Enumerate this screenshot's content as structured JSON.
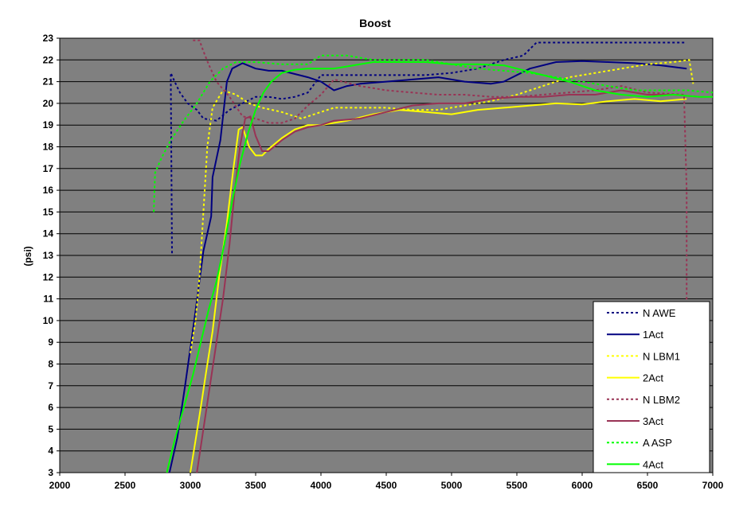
{
  "chart_data": {
    "type": "line",
    "title": "Boost",
    "xlabel": "",
    "ylabel": "(psi)",
    "xlim": [
      2000,
      7000
    ],
    "ylim": [
      3,
      23
    ],
    "x_ticks": [
      2000,
      2500,
      3000,
      3500,
      4000,
      4500,
      5000,
      5500,
      6000,
      6500,
      7000
    ],
    "y_ticks": [
      3,
      4,
      5,
      6,
      7,
      8,
      9,
      10,
      11,
      12,
      13,
      14,
      15,
      16,
      17,
      18,
      19,
      20,
      21,
      22,
      23
    ],
    "grid": "horizontal",
    "legend_position": "bottom-right",
    "background": "#808080",
    "series": [
      {
        "name": "N AWE",
        "color": "#000080",
        "dashed": true,
        "points": [
          [
            2860,
            13.1
          ],
          [
            2850,
            21.4
          ],
          [
            2880,
            21.0
          ],
          [
            2920,
            20.5
          ],
          [
            2980,
            20.0
          ],
          [
            3050,
            19.7
          ],
          [
            3100,
            19.3
          ],
          [
            3200,
            19.2
          ],
          [
            3300,
            19.7
          ],
          [
            3400,
            20.0
          ],
          [
            3500,
            20.3
          ],
          [
            3600,
            20.3
          ],
          [
            3700,
            20.2
          ],
          [
            3800,
            20.3
          ],
          [
            3900,
            20.5
          ],
          [
            4000,
            21.3
          ],
          [
            4200,
            21.3
          ],
          [
            4400,
            21.3
          ],
          [
            4600,
            21.3
          ],
          [
            4800,
            21.3
          ],
          [
            5000,
            21.4
          ],
          [
            5200,
            21.6
          ],
          [
            5400,
            22.0
          ],
          [
            5550,
            22.2
          ],
          [
            5650,
            22.8
          ],
          [
            6000,
            22.8
          ],
          [
            6400,
            22.8
          ],
          [
            6800,
            22.8
          ]
        ]
      },
      {
        "name": "1Act",
        "color": "#000080",
        "dashed": false,
        "points": [
          [
            2840,
            3.0
          ],
          [
            2900,
            4.6
          ],
          [
            2960,
            7.0
          ],
          [
            3030,
            10.0
          ],
          [
            3100,
            13.2
          ],
          [
            3160,
            14.8
          ],
          [
            3170,
            16.6
          ],
          [
            3230,
            18.3
          ],
          [
            3280,
            21.0
          ],
          [
            3320,
            21.6
          ],
          [
            3400,
            21.85
          ],
          [
            3500,
            21.6
          ],
          [
            3600,
            21.5
          ],
          [
            3700,
            21.5
          ],
          [
            3800,
            21.35
          ],
          [
            3900,
            21.2
          ],
          [
            4000,
            21.0
          ],
          [
            4050,
            20.8
          ],
          [
            4100,
            20.6
          ],
          [
            4200,
            20.8
          ],
          [
            4300,
            20.9
          ],
          [
            4500,
            21.0
          ],
          [
            4700,
            21.1
          ],
          [
            4900,
            21.2
          ],
          [
            5100,
            21.0
          ],
          [
            5300,
            20.9
          ],
          [
            5400,
            21.0
          ],
          [
            5600,
            21.6
          ],
          [
            5800,
            21.9
          ],
          [
            6000,
            21.95
          ],
          [
            6200,
            21.9
          ],
          [
            6400,
            21.85
          ],
          [
            6600,
            21.75
          ],
          [
            6800,
            21.6
          ]
        ]
      },
      {
        "name": "N LBM1",
        "color": "#ffff00",
        "dashed": true,
        "points": [
          [
            3000,
            8.5
          ],
          [
            3040,
            10.0
          ],
          [
            3070,
            12.0
          ],
          [
            3100,
            15.0
          ],
          [
            3130,
            18.0
          ],
          [
            3170,
            19.8
          ],
          [
            3250,
            20.6
          ],
          [
            3350,
            20.4
          ],
          [
            3450,
            20.0
          ],
          [
            3550,
            19.8
          ],
          [
            3700,
            19.6
          ],
          [
            3850,
            19.3
          ],
          [
            4000,
            19.6
          ],
          [
            4100,
            19.8
          ],
          [
            4300,
            19.8
          ],
          [
            4500,
            19.8
          ],
          [
            4700,
            19.7
          ],
          [
            4900,
            19.7
          ],
          [
            5100,
            19.9
          ],
          [
            5300,
            20.1
          ],
          [
            5500,
            20.4
          ],
          [
            5700,
            20.8
          ],
          [
            5900,
            21.2
          ],
          [
            6100,
            21.4
          ],
          [
            6300,
            21.6
          ],
          [
            6500,
            21.8
          ],
          [
            6700,
            21.9
          ],
          [
            6820,
            22.0
          ],
          [
            6850,
            20.9
          ]
        ]
      },
      {
        "name": "2Act",
        "color": "#ffff00",
        "dashed": false,
        "points": [
          [
            3000,
            3.0
          ],
          [
            3040,
            4.5
          ],
          [
            3080,
            6.0
          ],
          [
            3120,
            7.6
          ],
          [
            3170,
            9.5
          ],
          [
            3220,
            12.0
          ],
          [
            3280,
            14.5
          ],
          [
            3330,
            17.0
          ],
          [
            3370,
            18.8
          ],
          [
            3400,
            18.9
          ],
          [
            3450,
            18.0
          ],
          [
            3500,
            17.6
          ],
          [
            3550,
            17.6
          ],
          [
            3600,
            17.9
          ],
          [
            3700,
            18.4
          ],
          [
            3800,
            18.8
          ],
          [
            3900,
            19.0
          ],
          [
            4000,
            19.0
          ],
          [
            4200,
            19.2
          ],
          [
            4400,
            19.5
          ],
          [
            4600,
            19.7
          ],
          [
            4800,
            19.6
          ],
          [
            5000,
            19.5
          ],
          [
            5200,
            19.7
          ],
          [
            5400,
            19.8
          ],
          [
            5600,
            19.9
          ],
          [
            5800,
            20.0
          ],
          [
            6000,
            19.95
          ],
          [
            6200,
            20.1
          ],
          [
            6400,
            20.2
          ],
          [
            6600,
            20.1
          ],
          [
            6800,
            20.2
          ]
        ]
      },
      {
        "name": "N LBM2",
        "color": "#993355",
        "dashed": true,
        "points": [
          [
            3020,
            22.9
          ],
          [
            3070,
            22.9
          ],
          [
            3100,
            22.4
          ],
          [
            3140,
            21.8
          ],
          [
            3200,
            21.0
          ],
          [
            3300,
            20.3
          ],
          [
            3400,
            19.4
          ],
          [
            3500,
            19.3
          ],
          [
            3600,
            19.1
          ],
          [
            3700,
            19.1
          ],
          [
            3800,
            19.3
          ],
          [
            3900,
            19.9
          ],
          [
            4000,
            20.4
          ],
          [
            4100,
            21.1
          ],
          [
            4300,
            20.8
          ],
          [
            4500,
            20.6
          ],
          [
            4700,
            20.5
          ],
          [
            4900,
            20.4
          ],
          [
            5100,
            20.4
          ],
          [
            5300,
            20.3
          ],
          [
            5500,
            20.3
          ],
          [
            5700,
            20.4
          ],
          [
            5900,
            20.5
          ],
          [
            6100,
            20.6
          ],
          [
            6300,
            20.8
          ],
          [
            6500,
            20.5
          ],
          [
            6780,
            20.4
          ],
          [
            6800,
            16.0
          ],
          [
            6800,
            10.8
          ]
        ]
      },
      {
        "name": "3Act",
        "color": "#993355",
        "dashed": false,
        "points": [
          [
            3050,
            3.0
          ],
          [
            3100,
            5.0
          ],
          [
            3150,
            7.0
          ],
          [
            3200,
            9.0
          ],
          [
            3250,
            11.0
          ],
          [
            3300,
            13.5
          ],
          [
            3340,
            16.0
          ],
          [
            3380,
            18.0
          ],
          [
            3420,
            19.3
          ],
          [
            3460,
            19.4
          ],
          [
            3500,
            18.5
          ],
          [
            3550,
            17.8
          ],
          [
            3600,
            17.8
          ],
          [
            3700,
            18.3
          ],
          [
            3800,
            18.7
          ],
          [
            3900,
            18.9
          ],
          [
            4000,
            19.0
          ],
          [
            4100,
            19.2
          ],
          [
            4300,
            19.3
          ],
          [
            4500,
            19.6
          ],
          [
            4700,
            19.9
          ],
          [
            4900,
            20.0
          ],
          [
            5100,
            20.0
          ],
          [
            5300,
            20.2
          ],
          [
            5500,
            20.3
          ],
          [
            5700,
            20.3
          ],
          [
            5900,
            20.4
          ],
          [
            6100,
            20.4
          ],
          [
            6300,
            20.6
          ],
          [
            6500,
            20.4
          ],
          [
            6700,
            20.4
          ],
          [
            6900,
            20.3
          ]
        ]
      },
      {
        "name": "A ASP",
        "color": "#00ff00",
        "dashed": true,
        "points": [
          [
            2720,
            15.0
          ],
          [
            2730,
            16.8
          ],
          [
            2780,
            17.5
          ],
          [
            2850,
            18.3
          ],
          [
            2950,
            19.2
          ],
          [
            3050,
            20.0
          ],
          [
            3150,
            21.0
          ],
          [
            3250,
            21.6
          ],
          [
            3350,
            21.9
          ],
          [
            3500,
            21.9
          ],
          [
            3700,
            21.8
          ],
          [
            3900,
            21.8
          ],
          [
            4000,
            22.2
          ],
          [
            4200,
            22.2
          ],
          [
            4400,
            22.0
          ],
          [
            4600,
            22.0
          ],
          [
            4800,
            22.0
          ],
          [
            5000,
            21.8
          ],
          [
            5200,
            21.6
          ],
          [
            5400,
            21.5
          ],
          [
            5600,
            21.4
          ],
          [
            5800,
            21.2
          ],
          [
            6000,
            21.0
          ],
          [
            6200,
            20.8
          ],
          [
            6400,
            20.6
          ],
          [
            6600,
            20.6
          ],
          [
            6800,
            20.6
          ],
          [
            7000,
            20.5
          ]
        ]
      },
      {
        "name": "4Act",
        "color": "#00ff00",
        "dashed": false,
        "points": [
          [
            2820,
            3.0
          ],
          [
            2880,
            4.5
          ],
          [
            2950,
            6.0
          ],
          [
            3020,
            7.5
          ],
          [
            3080,
            9.0
          ],
          [
            3140,
            10.5
          ],
          [
            3200,
            11.8
          ],
          [
            3260,
            13.5
          ],
          [
            3320,
            15.5
          ],
          [
            3380,
            17.2
          ],
          [
            3440,
            18.6
          ],
          [
            3500,
            19.7
          ],
          [
            3560,
            20.5
          ],
          [
            3620,
            21.0
          ],
          [
            3700,
            21.4
          ],
          [
            3800,
            21.55
          ],
          [
            3900,
            21.6
          ],
          [
            4000,
            21.6
          ],
          [
            4100,
            21.6
          ],
          [
            4200,
            21.7
          ],
          [
            4400,
            21.9
          ],
          [
            4600,
            21.9
          ],
          [
            4800,
            21.9
          ],
          [
            5000,
            21.8
          ],
          [
            5200,
            21.8
          ],
          [
            5400,
            21.75
          ],
          [
            5500,
            21.6
          ],
          [
            5700,
            21.3
          ],
          [
            5900,
            21.0
          ],
          [
            6100,
            20.6
          ],
          [
            6300,
            20.4
          ],
          [
            6500,
            20.3
          ],
          [
            6700,
            20.4
          ],
          [
            6900,
            20.3
          ],
          [
            7000,
            20.3
          ]
        ]
      }
    ]
  }
}
